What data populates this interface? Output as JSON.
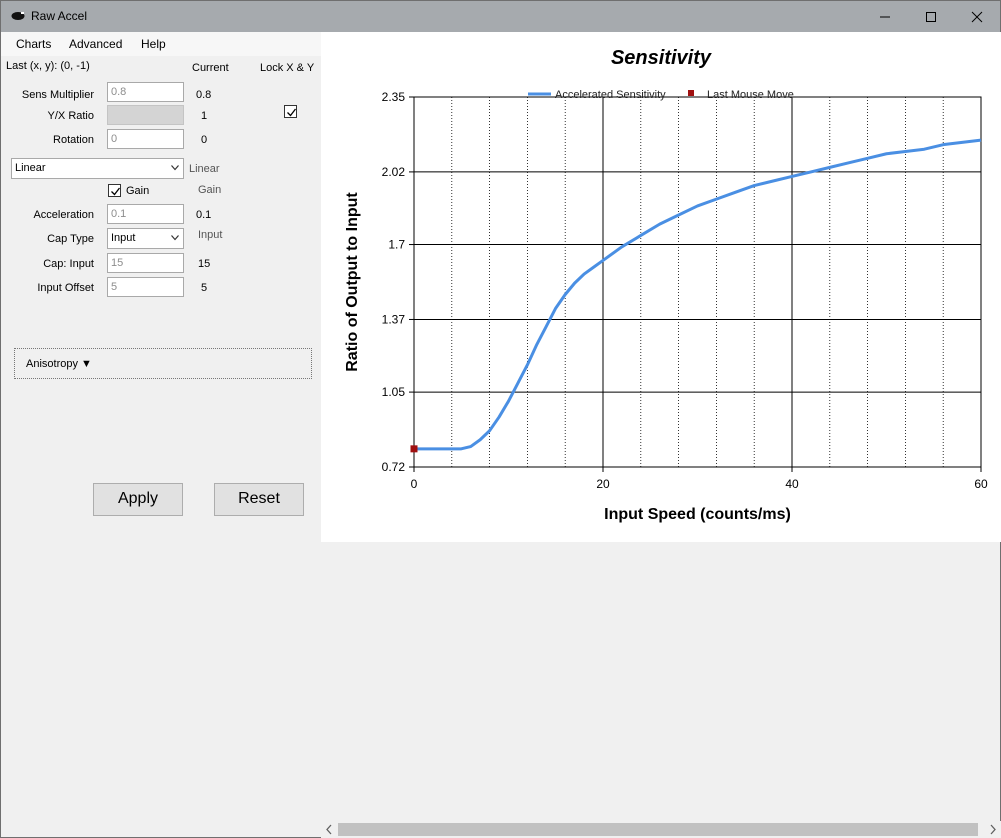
{
  "window": {
    "title": "Raw Accel"
  },
  "menu": [
    "Charts",
    "Advanced",
    "Help"
  ],
  "last_xy": "Last (x, y): (0, -1)",
  "headers": {
    "current": "Current",
    "lock": "Lock X & Y"
  },
  "settings": {
    "sens_multiplier": {
      "label": "Sens Multiplier",
      "value": "0.8",
      "current": "0.8"
    },
    "yx_ratio": {
      "label": "Y/X Ratio",
      "value": "",
      "current": "1"
    },
    "rotation": {
      "label": "Rotation",
      "value": "0",
      "current": "0"
    },
    "accel_type": {
      "value": "Linear",
      "current": "Linear"
    },
    "gain": {
      "label": "Gain",
      "checked": true,
      "current": "Gain"
    },
    "acceleration": {
      "label": "Acceleration",
      "value": "0.1",
      "current": "0.1"
    },
    "cap_type": {
      "label": "Cap Type",
      "value": "Input",
      "current": "Input"
    },
    "cap_input": {
      "label": "Cap: Input",
      "value": "15",
      "current": "15"
    },
    "input_offset": {
      "label": "Input Offset",
      "value": "5",
      "current": "5"
    }
  },
  "lock_checked": true,
  "anisotropy": "Anisotropy ▼",
  "buttons": {
    "apply": "Apply",
    "reset": "Reset"
  },
  "icons": [
    "app-icon",
    "minimize-icon",
    "maximize-icon",
    "close-icon",
    "chevron-down-icon",
    "checkmark-icon"
  ],
  "colors": {
    "titlebar": "#a6aaae",
    "series": "#4a8fe3",
    "marker": "#a01010"
  },
  "chart_data": {
    "type": "line",
    "title": "Sensitivity",
    "xlabel": "Input Speed (counts/ms)",
    "ylabel": "Ratio of Output to Input",
    "xlim": [
      0,
      60
    ],
    "ylim": [
      0.72,
      2.35
    ],
    "x_ticks": [
      0,
      20,
      40,
      60
    ],
    "y_ticks": [
      "0.72",
      "1.05",
      "1.37",
      "1.7",
      "2.02",
      "2.35"
    ],
    "legend_position": "top",
    "series": [
      {
        "name": "Accelerated Sensitivity",
        "x": [
          0,
          5,
          6,
          7,
          8,
          9,
          10,
          11,
          12,
          13,
          14,
          15,
          16,
          17,
          18,
          19,
          20,
          22,
          24,
          26,
          28,
          30,
          32,
          34,
          36,
          38,
          40,
          42,
          44,
          46,
          48,
          50,
          52,
          54,
          56,
          58,
          60
        ],
        "y": [
          0.8,
          0.8,
          0.81,
          0.84,
          0.88,
          0.94,
          1.01,
          1.09,
          1.17,
          1.26,
          1.34,
          1.42,
          1.48,
          1.53,
          1.57,
          1.6,
          1.63,
          1.69,
          1.74,
          1.79,
          1.83,
          1.87,
          1.9,
          1.93,
          1.96,
          1.98,
          2.0,
          2.02,
          2.04,
          2.06,
          2.08,
          2.1,
          2.11,
          2.12,
          2.14,
          2.15,
          2.16
        ]
      },
      {
        "name": "Last Mouse Move",
        "x": [
          0
        ],
        "y": [
          0.8
        ]
      }
    ]
  }
}
